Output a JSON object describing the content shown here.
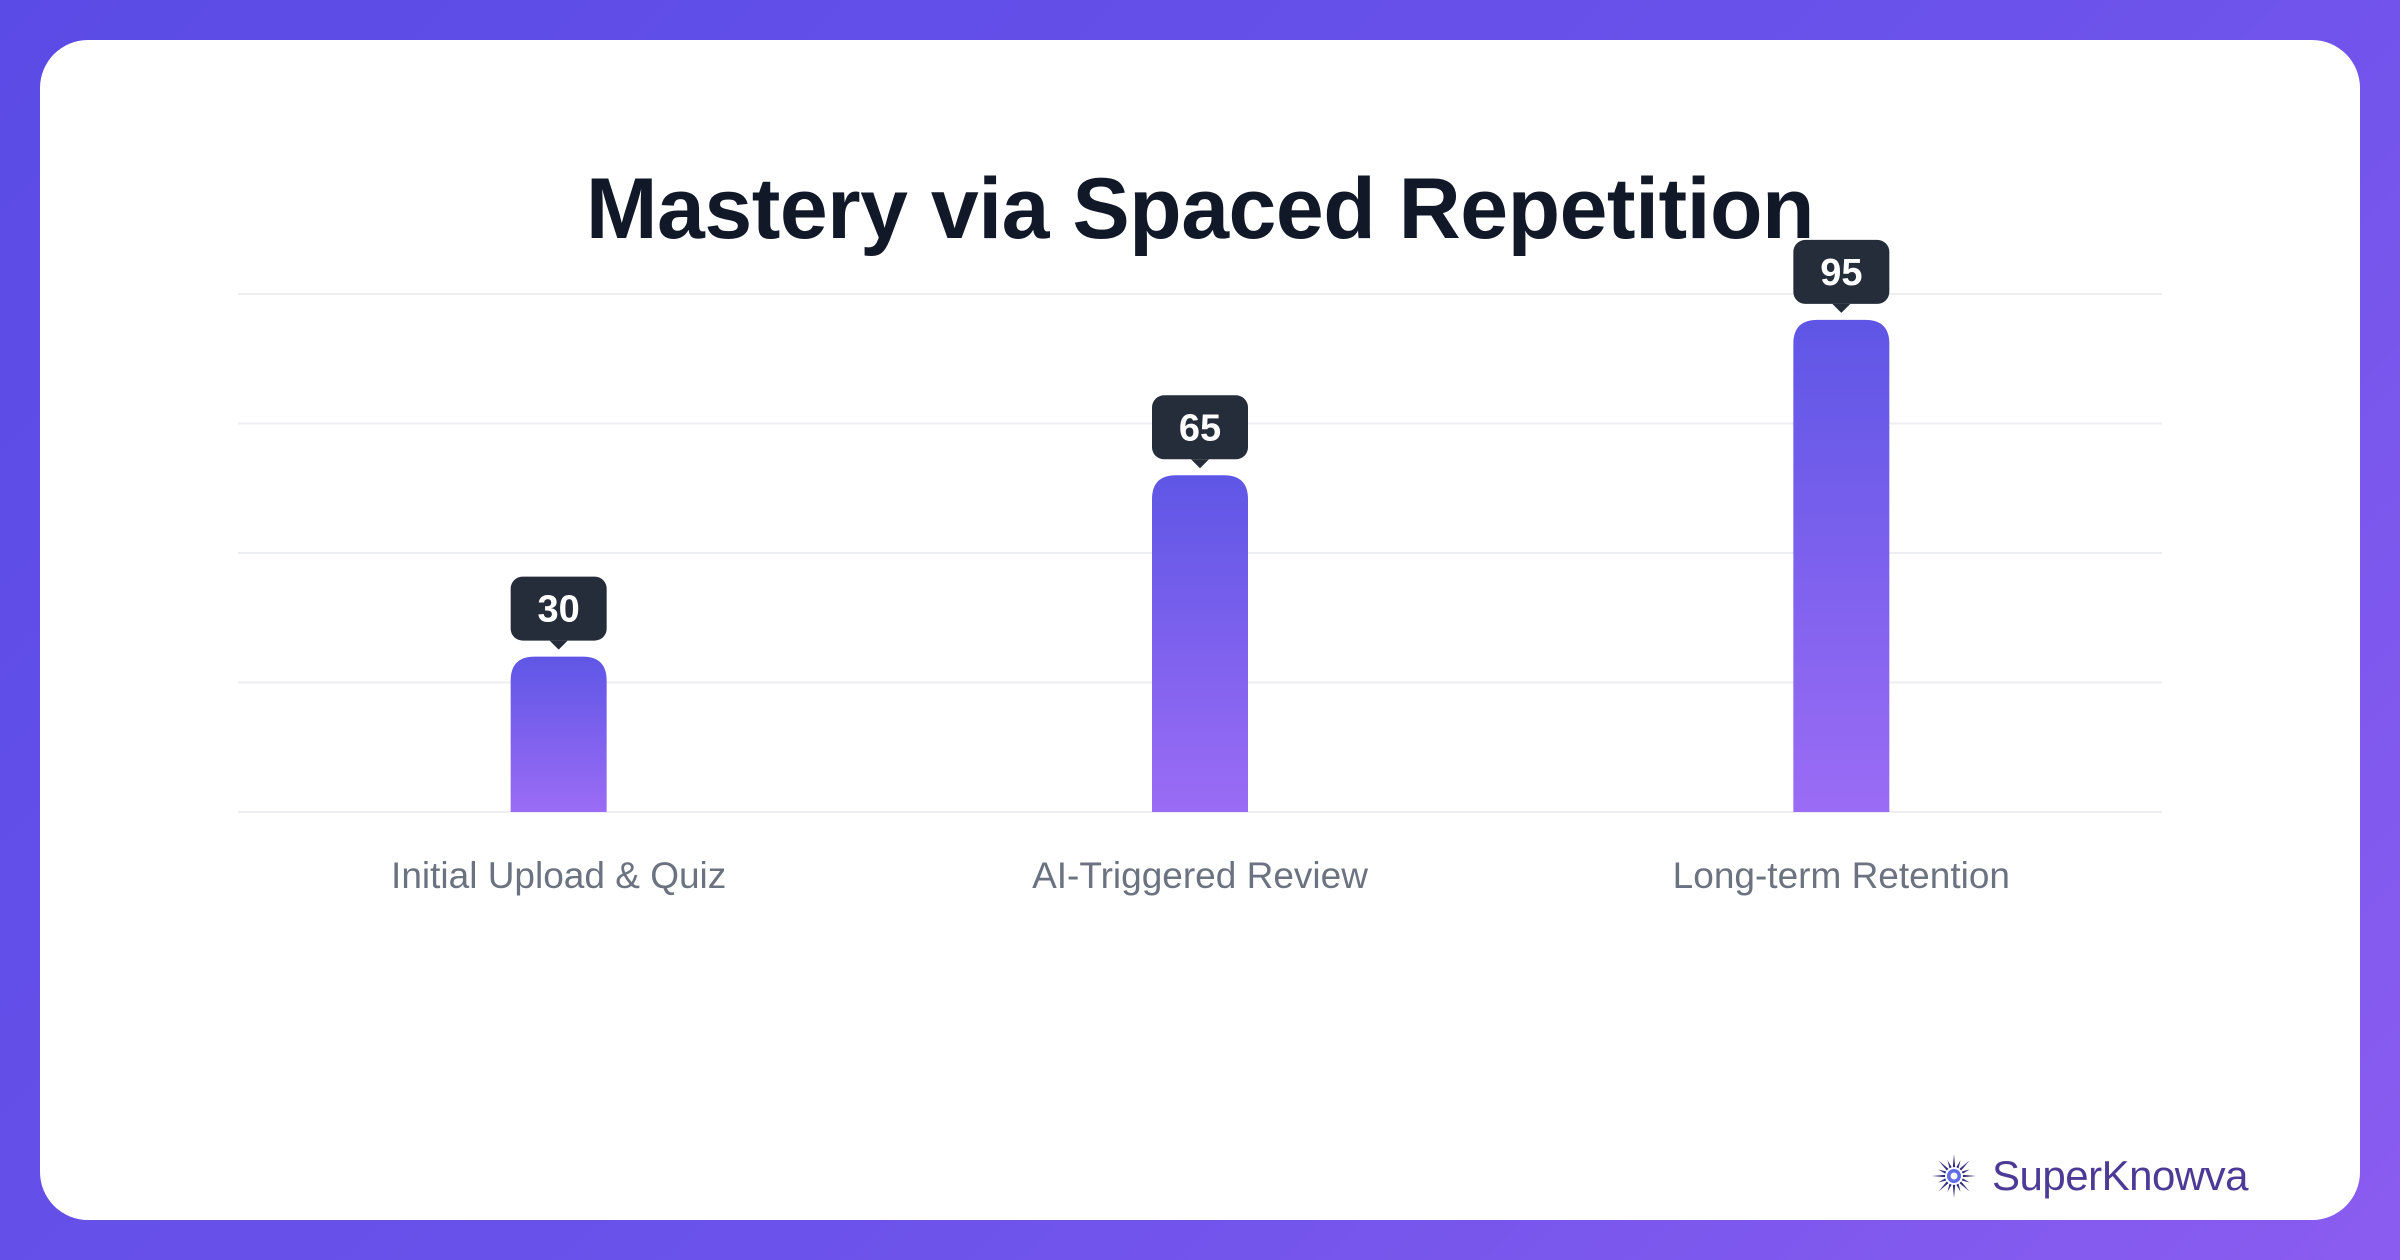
{
  "chart_data": {
    "type": "bar",
    "title": "Mastery via Spaced Repetition",
    "categories": [
      "Initial Upload & Quiz",
      "AI-Triggered Review",
      "Long-term Retention"
    ],
    "values": [
      30,
      65,
      95
    ],
    "ylim": [
      0,
      100
    ],
    "grid": true,
    "legend": "none",
    "bar_gradient": [
      "#5f56e6",
      "#9b6cf5"
    ],
    "label_badge_color": "#252d3a"
  },
  "brand": {
    "name": "SuperKnowva",
    "icon": "starburst-icon",
    "color": "#4c3a96"
  },
  "colors": {
    "background": "#6a52ea",
    "card": "#ffffff",
    "title": "#111827",
    "category_text": "#6b7280",
    "grid": "#eceef2"
  }
}
